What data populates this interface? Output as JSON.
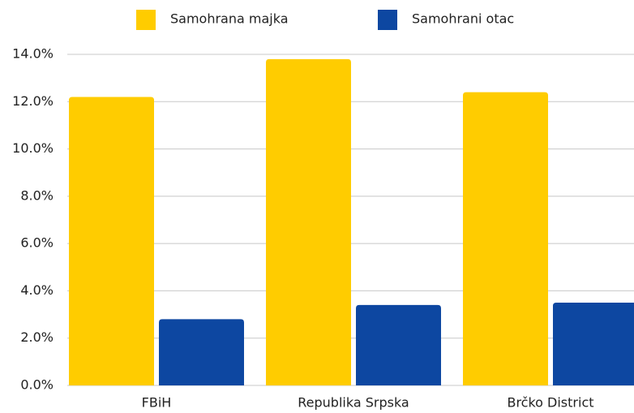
{
  "chart_data": {
    "type": "bar",
    "categories": [
      "FBiH",
      "Republika Srpska",
      "Brčko District"
    ],
    "series": [
      {
        "name": "Samohrana majka",
        "color": "#ffcc00",
        "values": [
          12.2,
          13.8,
          12.4
        ]
      },
      {
        "name": "Samohrani otac",
        "color": "#0d47a1",
        "values": [
          2.8,
          3.4,
          3.5
        ]
      }
    ],
    "ylim": [
      0,
      14
    ],
    "yticks": [
      {
        "value": 0,
        "label": "0.0%"
      },
      {
        "value": 2,
        "label": "2.0%"
      },
      {
        "value": 4,
        "label": "4.0%"
      },
      {
        "value": 6,
        "label": "6.0%"
      },
      {
        "value": 8,
        "label": "8.0%"
      },
      {
        "value": 10,
        "label": "10.0%"
      },
      {
        "value": 12,
        "label": "12.0%"
      },
      {
        "value": 14,
        "label": "14.0%"
      }
    ],
    "grid": true,
    "legend": "top"
  }
}
